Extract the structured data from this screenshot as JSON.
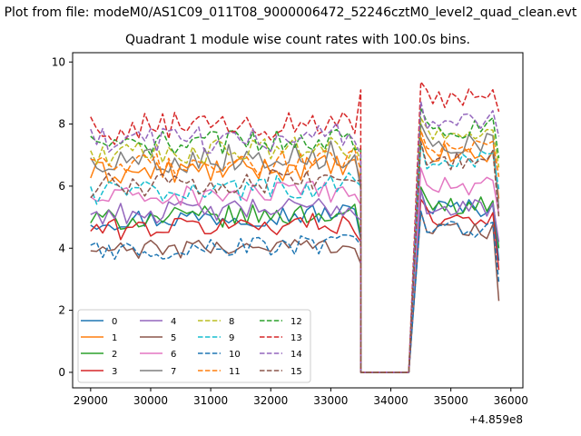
{
  "figure": {
    "suptitle": "Plot from file: modeM0/AS1C09_011T08_9000006472_52246cztM0_level2_quad_clean.evt",
    "title": "Quadrant 1 module wise count rates with 100.0s bins.",
    "offset_label": "+4.859e8"
  },
  "chart_data": {
    "type": "line",
    "title": "Quadrant 1 module wise count rates with 100.0s bins.",
    "xlabel": "",
    "ylabel": "",
    "x_offset": 485900000,
    "xlim": [
      28700,
      36200
    ],
    "ylim": [
      -0.5,
      10.3
    ],
    "xticks": [
      29000,
      30000,
      31000,
      32000,
      33000,
      34000,
      35000,
      36000
    ],
    "xtick_labels": [
      "29000",
      "30000",
      "31000",
      "32000",
      "33000",
      "34000",
      "35000",
      "36000"
    ],
    "yticks": [
      0,
      2,
      4,
      6,
      8,
      10
    ],
    "ytick_labels": [
      "0",
      "2",
      "4",
      "6",
      "8",
      "10"
    ],
    "grid": false,
    "legend_location": "lower left",
    "gap": {
      "start": 33500,
      "end": 34300,
      "value": 0
    },
    "segments": [
      {
        "x_start": 29000,
        "x_step": 100,
        "n": 46
      },
      {
        "x_start": 34500,
        "x_step": 100,
        "n": 14
      }
    ],
    "series": [
      {
        "name": "0",
        "color": "#1f77b4",
        "dash": "solid",
        "mean1": 4.9,
        "amp1": 0.35,
        "end1": 4.3,
        "mean2": 5.3,
        "amp2": 0.3,
        "end2": 3.6
      },
      {
        "name": "1",
        "color": "#ff7f0e",
        "dash": "solid",
        "mean1": 6.4,
        "amp1": 0.4,
        "end1": 6.2,
        "mean2": 7.0,
        "amp2": 0.35,
        "end2": 5.6
      },
      {
        "name": "2",
        "color": "#2ca02c",
        "dash": "solid",
        "mean1": 4.9,
        "amp1": 0.35,
        "end1": 4.4,
        "mean2": 5.4,
        "amp2": 0.3,
        "end2": 4.0
      },
      {
        "name": "3",
        "color": "#d62728",
        "dash": "solid",
        "mean1": 4.6,
        "amp1": 0.35,
        "end1": 4.2,
        "mean2": 5.0,
        "amp2": 0.3,
        "end2": 3.3
      },
      {
        "name": "4",
        "color": "#9467bd",
        "dash": "solid",
        "mean1": 5.1,
        "amp1": 0.35,
        "end1": 4.9,
        "mean2": 5.3,
        "amp2": 0.3,
        "end2": 4.2
      },
      {
        "name": "5",
        "color": "#8c564b",
        "dash": "solid",
        "mean1": 3.9,
        "amp1": 0.3,
        "end1": 3.5,
        "mean2": 4.6,
        "amp2": 0.3,
        "end2": 2.3
      },
      {
        "name": "6",
        "color": "#e377c2",
        "dash": "solid",
        "mean1": 5.6,
        "amp1": 0.35,
        "end1": 5.4,
        "mean2": 6.0,
        "amp2": 0.3,
        "end2": 5.1
      },
      {
        "name": "7",
        "color": "#7f7f7f",
        "dash": "solid",
        "mean1": 6.8,
        "amp1": 0.45,
        "end1": 5.9,
        "mean2": 7.4,
        "amp2": 0.35,
        "end2": 5.3
      },
      {
        "name": "8",
        "color": "#bcbd22",
        "dash": "dashed",
        "mean1": 7.0,
        "amp1": 0.4,
        "end1": 6.8,
        "mean2": 7.6,
        "amp2": 0.3,
        "end2": 6.6
      },
      {
        "name": "9",
        "color": "#17becf",
        "dash": "dashed",
        "mean1": 5.8,
        "amp1": 0.4,
        "end1": 6.0,
        "mean2": 6.8,
        "amp2": 0.35,
        "end2": 5.9
      },
      {
        "name": "10",
        "color": "#1f77b4",
        "dash": "dashed",
        "mean1": 3.9,
        "amp1": 0.35,
        "end1": 4.1,
        "mean2": 4.6,
        "amp2": 0.3,
        "end2": 2.9
      },
      {
        "name": "11",
        "color": "#ff7f0e",
        "dash": "dashed",
        "mean1": 6.6,
        "amp1": 0.4,
        "end1": 6.5,
        "mean2": 7.2,
        "amp2": 0.3,
        "end2": 6.3
      },
      {
        "name": "12",
        "color": "#2ca02c",
        "dash": "dashed",
        "mean1": 7.3,
        "amp1": 0.4,
        "end1": 7.2,
        "mean2": 7.9,
        "amp2": 0.35,
        "end2": 6.9
      },
      {
        "name": "13",
        "color": "#d62728",
        "dash": "dashed",
        "mean1": 7.8,
        "amp1": 0.5,
        "end1": 9.1,
        "mean2": 8.7,
        "amp2": 0.45,
        "end2": 8.4
      },
      {
        "name": "14",
        "color": "#9467bd",
        "dash": "dashed",
        "mean1": 7.4,
        "amp1": 0.45,
        "end1": 7.0,
        "mean2": 8.1,
        "amp2": 0.35,
        "end2": 7.6
      },
      {
        "name": "15",
        "color": "#8c564b",
        "dash": "dashed",
        "mean1": 6.0,
        "amp1": 0.4,
        "end1": 6.2,
        "mean2": 6.8,
        "amp2": 0.35,
        "end2": 5.0
      }
    ]
  }
}
